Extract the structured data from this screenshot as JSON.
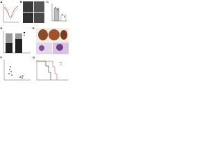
{
  "figure": {
    "panels": [
      {
        "label": "A"
      },
      {
        "label": "B"
      },
      {
        "label": "C"
      },
      {
        "label": "D"
      },
      {
        "label": "E"
      },
      {
        "label": "F"
      },
      {
        "label": "G"
      }
    ]
  }
}
